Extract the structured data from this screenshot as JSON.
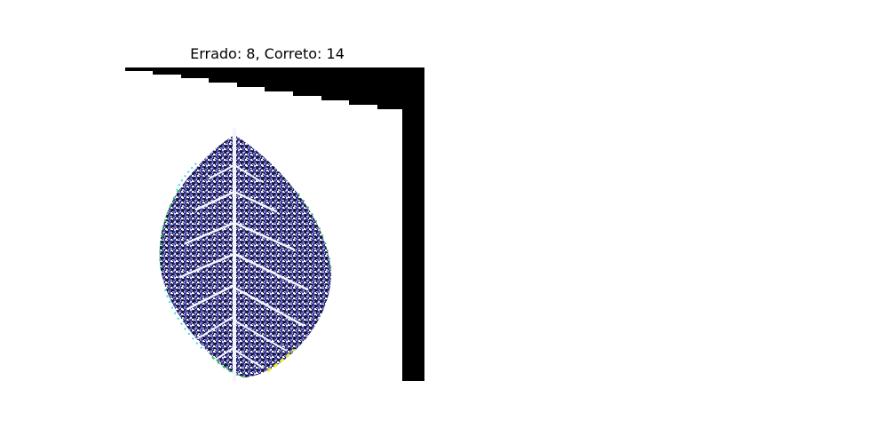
{
  "figure": {
    "title": "Errado: 8, Correto: 14"
  },
  "image": {
    "subject": "leaf-icon",
    "colors": {
      "background": "#ffffff",
      "border": "#000000",
      "leaf_dark": "#1a1a40",
      "leaf_blue": "#4a4ab0",
      "leaf_light": "#9a9ae0",
      "vein": "#f4f4ff",
      "fringe_green": "#22cc44",
      "fringe_cyan": "#33dddd",
      "fringe_yellow": "#eeee33"
    }
  }
}
